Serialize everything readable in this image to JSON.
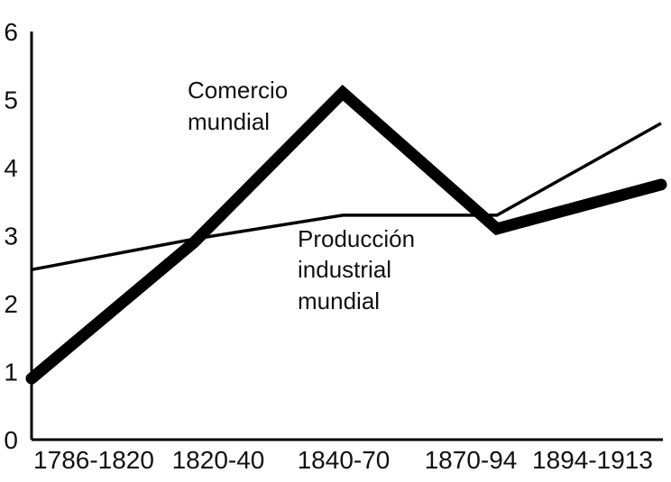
{
  "chart_data": {
    "type": "line",
    "categories": [
      "1786-1820",
      "1820-40",
      "1840-70",
      "1870-94",
      "1894-1913"
    ],
    "ylim": [
      0,
      6
    ],
    "yticks": [
      "0",
      "1",
      "2",
      "3",
      "4",
      "5",
      "6"
    ],
    "grid": false,
    "legend": "none",
    "series": [
      {
        "name": "Comercio mundial",
        "values": [
          0.9,
          2.9,
          5.1,
          3.1,
          3.75
        ],
        "color": "#000000",
        "label_lines": [
          "Comercio",
          "mundial"
        ]
      },
      {
        "name": "Producción industrial mundial",
        "values": [
          2.5,
          2.95,
          3.3,
          3.3,
          4.65
        ],
        "color": "#000000",
        "label_lines": [
          "Producción",
          "industrial",
          "mundial"
        ]
      }
    ]
  }
}
